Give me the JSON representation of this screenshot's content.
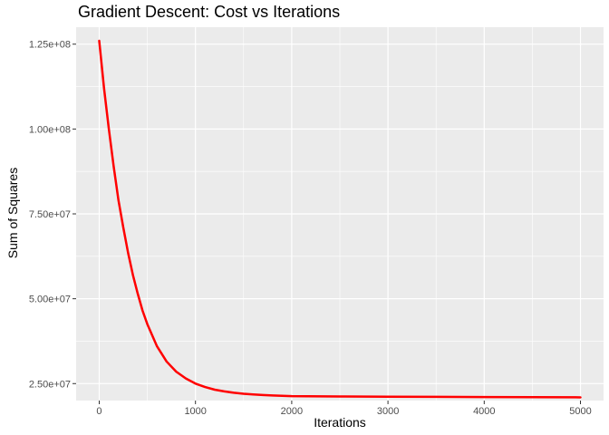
{
  "chart_data": {
    "type": "line",
    "title": "Gradient Descent: Cost vs Iterations",
    "xlabel": "Iterations",
    "ylabel": "Sum of Squares",
    "xlim": [
      -240,
      5240
    ],
    "ylim": [
      20000000,
      130000000
    ],
    "x_ticks": [
      0,
      1000,
      2000,
      3000,
      4000,
      5000
    ],
    "x_tick_labels": [
      "0",
      "1000",
      "2000",
      "3000",
      "4000",
      "5000"
    ],
    "y_ticks": [
      25000000,
      50000000,
      75000000,
      100000000,
      125000000
    ],
    "y_tick_labels": [
      "2.50e+07",
      "5.00e+07",
      "7.50e+07",
      "1.00e+08",
      "1.25e+08"
    ],
    "grid": true,
    "series": [
      {
        "color": "#ff0000",
        "x": [
          0,
          50,
          100,
          150,
          200,
          250,
          300,
          350,
          400,
          450,
          500,
          600,
          700,
          800,
          900,
          1000,
          1100,
          1200,
          1300,
          1400,
          1500,
          1600,
          1700,
          1800,
          1900,
          2000,
          2500,
          3000,
          3500,
          4000,
          4500,
          5000
        ],
        "y": [
          126000000,
          112000000,
          100000000,
          89000000,
          79000000,
          71000000,
          63500000,
          57000000,
          51500000,
          46500000,
          42500000,
          36000000,
          31500000,
          28500000,
          26500000,
          25000000,
          24000000,
          23200000,
          22700000,
          22300000,
          22000000,
          21800000,
          21650000,
          21500000,
          21400000,
          21300000,
          21200000,
          21150000,
          21100000,
          21050000,
          21000000,
          20950000
        ]
      }
    ]
  }
}
